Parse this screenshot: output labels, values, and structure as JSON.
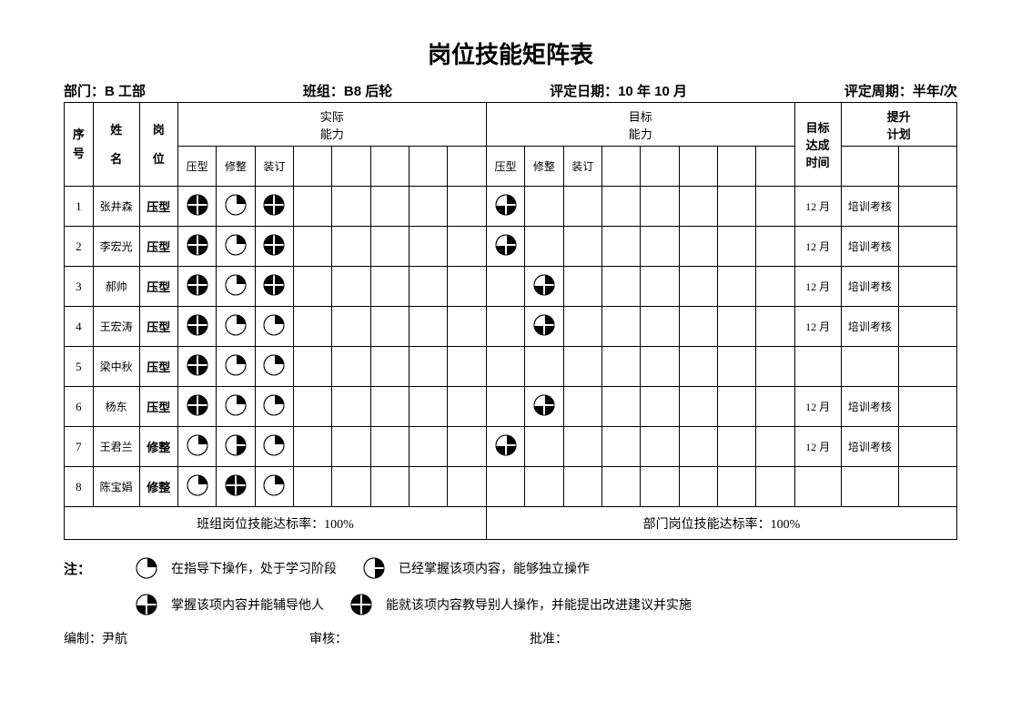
{
  "title": "岗位技能矩阵表",
  "meta": {
    "dept_label": "部门：",
    "dept": "B 工部",
    "team_label": "班组：",
    "team": "B8 后轮",
    "date_label": "评定日期：",
    "date": "10 年 10 月",
    "cycle_label": "评定周期：",
    "cycle": "半年/次"
  },
  "headers": {
    "no": "序号",
    "name": "姓名",
    "pos": "岗位",
    "actual": "实际\n能力",
    "target": "目标\n能力",
    "goal_time": "目标\n达成\n时间",
    "plan": "提升\n计划",
    "skills": [
      "压型",
      "修整",
      "装订"
    ]
  },
  "rows": [
    {
      "no": "1",
      "name": "张井森",
      "pos": "压型",
      "actual": [
        4,
        1,
        4
      ],
      "target": [
        3,
        null,
        null
      ],
      "time": "12 月",
      "plan": "培训考核"
    },
    {
      "no": "2",
      "name": "李宏光",
      "pos": "压型",
      "actual": [
        4,
        1,
        4
      ],
      "target": [
        3,
        null,
        null
      ],
      "time": "12 月",
      "plan": "培训考核"
    },
    {
      "no": "3",
      "name": "郝帅",
      "pos": "压型",
      "actual": [
        4,
        1,
        4
      ],
      "target": [
        null,
        3,
        null
      ],
      "time": "12 月",
      "plan": "培训考核"
    },
    {
      "no": "4",
      "name": "王宏涛",
      "pos": "压型",
      "actual": [
        4,
        1,
        1
      ],
      "target": [
        null,
        3,
        null
      ],
      "time": "12 月",
      "plan": "培训考核"
    },
    {
      "no": "5",
      "name": "梁中秋",
      "pos": "压型",
      "actual": [
        4,
        1,
        1
      ],
      "target": [
        null,
        null,
        null
      ],
      "time": "",
      "plan": ""
    },
    {
      "no": "6",
      "name": "杨东",
      "pos": "压型",
      "actual": [
        4,
        1,
        1
      ],
      "target": [
        null,
        3,
        null
      ],
      "time": "12 月",
      "plan": "培训考核"
    },
    {
      "no": "7",
      "name": "王君兰",
      "pos": "修整",
      "actual": [
        1,
        2,
        1
      ],
      "target": [
        3,
        null,
        null
      ],
      "time": "12 月",
      "plan": "培训考核"
    },
    {
      "no": "8",
      "name": "陈宝娟",
      "pos": "修整",
      "actual": [
        1,
        4,
        1
      ],
      "target": [
        null,
        null,
        null
      ],
      "time": "",
      "plan": ""
    }
  ],
  "footer": {
    "team_rate_label": "班组岗位技能达标率：",
    "team_rate": "100%",
    "dept_rate_label": "部门岗位技能达标率：",
    "dept_rate": "100%"
  },
  "legend": {
    "label": "注：",
    "items": [
      {
        "level": 1,
        "text": "在指导下操作，处于学习阶段"
      },
      {
        "level": 2,
        "text": "已经掌握该项内容，能够独立操作"
      },
      {
        "level": 3,
        "text": "掌握该项内容并能辅导他人"
      },
      {
        "level": 4,
        "text": "能就该项内容教导别人操作，并能提出改进建议并实施"
      }
    ]
  },
  "sign": {
    "make_label": "编制：",
    "make": "尹航",
    "check_label": "审核：",
    "check": "",
    "approve_label": "批准：",
    "approve": ""
  },
  "style": {
    "filled": "#000000",
    "empty": "#ffffff",
    "stroke": "#000000"
  }
}
